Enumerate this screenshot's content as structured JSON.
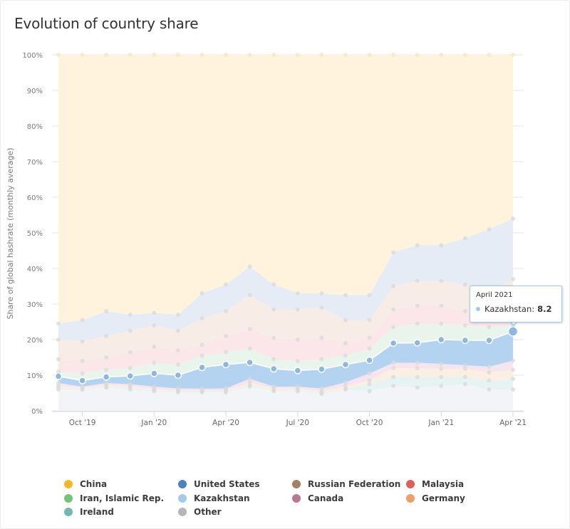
{
  "card": {
    "title": "Evolution of country share"
  },
  "chart_data": {
    "type": "area",
    "stacked": true,
    "title": "Evolution of country share",
    "xlabel": "",
    "ylabel": "Share of global hashrate (monthly average)",
    "ylim": [
      0,
      100
    ],
    "y_ticks": [
      "0%",
      "10%",
      "20%",
      "30%",
      "40%",
      "50%",
      "60%",
      "70%",
      "80%",
      "90%",
      "100%"
    ],
    "y_tick_values": [
      0,
      10,
      20,
      30,
      40,
      50,
      60,
      70,
      80,
      90,
      100
    ],
    "x": [
      "Sep 2019",
      "Oct 2019",
      "Nov 2019",
      "Dec 2019",
      "Jan 2020",
      "Feb 2020",
      "Mar 2020",
      "Apr 2020",
      "May 2020",
      "Jun 2020",
      "Jul 2020",
      "Aug 2020",
      "Sep 2020",
      "Oct 2020",
      "Nov 2020",
      "Dec 2020",
      "Jan 2021",
      "Feb 2021",
      "Mar 2021",
      "Apr 2021"
    ],
    "x_ticks": [
      {
        "label": "Oct '19",
        "index": 1
      },
      {
        "label": "Jan '20",
        "index": 4
      },
      {
        "label": "Apr '20",
        "index": 7
      },
      {
        "label": "Jul '20",
        "index": 10
      },
      {
        "label": "Oct '20",
        "index": 13
      },
      {
        "label": "Jan '21",
        "index": 16
      },
      {
        "label": "Apr '21",
        "index": 19
      }
    ],
    "grid": true,
    "legend_position": "bottom",
    "stack_order_bottom_to_top": [
      "Other",
      "Ireland",
      "Germany",
      "Canada",
      "Kazakhstan",
      "Iran, Islamic Rep.",
      "Malaysia",
      "Russian Federation",
      "United States",
      "China"
    ],
    "series": [
      {
        "name": "China",
        "color": "#f7b733",
        "fill": "#fff3dd",
        "values": [
          75.5,
          74.5,
          72,
          73,
          72.5,
          73,
          67,
          64.5,
          59.5,
          64.5,
          67,
          67,
          67.5,
          67.5,
          55.5,
          53.5,
          53.5,
          51.5,
          49,
          46
        ]
      },
      {
        "name": "United States",
        "color": "#4f81bd",
        "fill": "#e6ecf6",
        "values": [
          4.5,
          6,
          7,
          4.5,
          3.5,
          4.5,
          7,
          7.5,
          8,
          7,
          4.5,
          4,
          7,
          7,
          9.5,
          10,
          10,
          13,
          17.5,
          17
        ]
      },
      {
        "name": "Russian Federation",
        "color": "#a67f68",
        "fill": "#f8ece7",
        "values": [
          5.5,
          5.5,
          6,
          6,
          6,
          5.5,
          7.5,
          7,
          9.5,
          8,
          8.5,
          8.5,
          6.5,
          5,
          6.5,
          7,
          7,
          7.5,
          6.5,
          9
        ]
      },
      {
        "name": "Malaysia",
        "color": "#d9534f",
        "fill": "#fbe7e9",
        "values": [
          3.5,
          3.5,
          3.5,
          4.5,
          4.5,
          4,
          3,
          4.5,
          5.5,
          6,
          6,
          6,
          3.5,
          3,
          5,
          5,
          5,
          4,
          3.5,
          4
        ]
      },
      {
        "name": "Iran, Islamic Rep.",
        "color": "#6fbf73",
        "fill": "#e9f5ec",
        "values": [
          1.3,
          2,
          2,
          2.2,
          3,
          3,
          3.3,
          3.5,
          3.9,
          2.7,
          2.7,
          2.8,
          2.5,
          3.3,
          4.5,
          5.4,
          4.5,
          4.2,
          3.7,
          1.7
        ]
      },
      {
        "name": "Kazakhstan",
        "color": "#a6c8ea",
        "fill": "#b3d3f0",
        "values": [
          1.9,
          1.7,
          1.7,
          2.3,
          3.7,
          3.7,
          6,
          6.7,
          4.6,
          5,
          4.5,
          5.4,
          5,
          3.7,
          5.5,
          5.6,
          6.8,
          7,
          7.4,
          8.2
        ]
      },
      {
        "name": "Canada",
        "color": "#b0728f",
        "fill": "#f6e4ee",
        "values": [
          0.8,
          0.3,
          0.5,
          0.5,
          0.6,
          0.5,
          0.4,
          0.5,
          1,
          0.5,
          0.5,
          0.8,
          1,
          2,
          1.5,
          1.5,
          1.4,
          1,
          1.6,
          2.6
        ]
      },
      {
        "name": "Germany",
        "color": "#e59a62",
        "fill": "#fbeee3",
        "values": [
          0.5,
          0.5,
          0.5,
          0.5,
          0.4,
          0.3,
          0.3,
          0.3,
          0.8,
          0.5,
          0.5,
          0.5,
          0.8,
          1,
          2.5,
          2.5,
          2.3,
          2.3,
          2.3,
          2.5
        ]
      },
      {
        "name": "Ireland",
        "color": "#6bb5a8",
        "fill": "#e6f3f2",
        "values": [
          0.5,
          0,
          0.3,
          0.5,
          0.3,
          0.3,
          0.3,
          0.3,
          0.4,
          0.3,
          0.3,
          0.2,
          0.2,
          2,
          2.5,
          3,
          2.5,
          2,
          2.5,
          3
        ]
      },
      {
        "name": "Other",
        "color": "#a8adb6",
        "fill": "#f3f4f7",
        "values": [
          6,
          6,
          6.5,
          6,
          5.5,
          5.2,
          5.2,
          5.2,
          6.8,
          5.5,
          5.5,
          4.8,
          6,
          5.5,
          7,
          6.5,
          7,
          7.5,
          6,
          6
        ]
      }
    ],
    "highlighted_series": "Kazakhstan",
    "tooltip": {
      "date": "April 2021",
      "series": "Kazakhstan",
      "value": "8.2",
      "index": 19
    }
  },
  "legend": {
    "items": [
      {
        "label": "China",
        "color": "#f5b82e"
      },
      {
        "label": "United States",
        "color": "#4f81bd"
      },
      {
        "label": "Russian Federation",
        "color": "#a67f68"
      },
      {
        "label": "Malaysia",
        "color": "#d9625c"
      },
      {
        "label": "Iran, Islamic Rep.",
        "color": "#78c07f"
      },
      {
        "label": "Kazakhstan",
        "color": "#a6c8ea"
      },
      {
        "label": "Canada",
        "color": "#b77a93"
      },
      {
        "label": "Germany",
        "color": "#e8a06c"
      },
      {
        "label": "Ireland",
        "color": "#72b8ae"
      },
      {
        "label": "Other",
        "color": "#b3b6bd"
      }
    ]
  },
  "tooltip": {
    "date": "April 2021",
    "series_label": "Kazakhstan:",
    "value": "8.2",
    "dot_color": "#a6c8ea"
  }
}
